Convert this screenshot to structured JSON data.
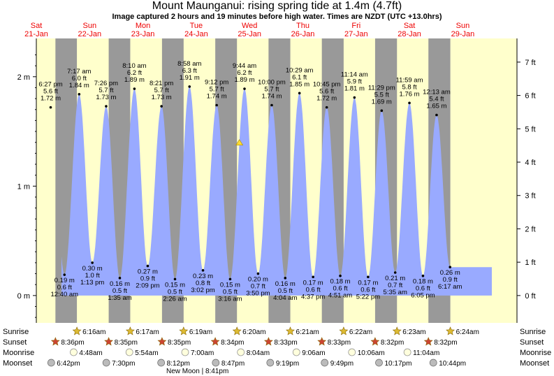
{
  "title": "Mount Maunganui: rising  spring tide at 1.4m (4.7ft)",
  "subtitle": "Image captured 2 hours and 19 minutes before high water. Times are NZDT (UTC +13.0hrs)",
  "colors": {
    "day": "#ffffcc",
    "night": "#999999",
    "tide": "#99aaff",
    "date": "#ee0000",
    "sun_star": "#ddbb33",
    "sunset_star": "#cc4433",
    "moonrise": "#ffffdd",
    "moonset": "#bbbbbb",
    "marker": "#ffdd33"
  },
  "chart_data": {
    "type": "area",
    "ylim_m": [
      -0.25,
      2.35
    ],
    "yticks_m": [
      "0 m",
      "1 m",
      "2 m"
    ],
    "yticks_ft": [
      "0 ft",
      "1 ft",
      "2 ft",
      "3 ft",
      "4 ft",
      "5 ft",
      "6 ft",
      "7 ft"
    ],
    "days": [
      {
        "name": "Sat",
        "date": "21-Jan"
      },
      {
        "name": "Sun",
        "date": "22-Jan"
      },
      {
        "name": "Mon",
        "date": "23-Jan"
      },
      {
        "name": "Tue",
        "date": "24-Jan"
      },
      {
        "name": "Wed",
        "date": "25-Jan"
      },
      {
        "name": "Thu",
        "date": "26-Jan"
      },
      {
        "name": "Fri",
        "date": "27-Jan"
      },
      {
        "name": "Sat",
        "date": "28-Jan"
      },
      {
        "name": "Sun",
        "date": "29-Jan"
      }
    ],
    "tides": [
      {
        "kind": "high",
        "time": "6:27 pm",
        "ft": "5.6 ft",
        "m": 1.72
      },
      {
        "kind": "low",
        "time": "12:40 am",
        "ft": "0.6 ft",
        "m": 0.19
      },
      {
        "kind": "high",
        "time": "7:17 am",
        "ft": "6.0 ft",
        "m": 1.84
      },
      {
        "kind": "low",
        "time": "1:13 pm",
        "ft": "1.0 ft",
        "m": 0.3
      },
      {
        "kind": "high",
        "time": "7:26 pm",
        "ft": "5.7 ft",
        "m": 1.73
      },
      {
        "kind": "low",
        "time": "1:35 am",
        "ft": "0.5 ft",
        "m": 0.16
      },
      {
        "kind": "high",
        "time": "8:10 am",
        "ft": "6.2 ft",
        "m": 1.89
      },
      {
        "kind": "low",
        "time": "2:09 pm",
        "ft": "0.9 ft",
        "m": 0.27
      },
      {
        "kind": "high",
        "time": "8:21 pm",
        "ft": "5.7 ft",
        "m": 1.73
      },
      {
        "kind": "low",
        "time": "2:26 am",
        "ft": "0.5 ft",
        "m": 0.15
      },
      {
        "kind": "high",
        "time": "8:58 am",
        "ft": "6.3 ft",
        "m": 1.91
      },
      {
        "kind": "low",
        "time": "3:02 pm",
        "ft": "0.8 ft",
        "m": 0.23
      },
      {
        "kind": "high",
        "time": "9:12 pm",
        "ft": "5.7 ft",
        "m": 1.74
      },
      {
        "kind": "low",
        "time": "3:16 am",
        "ft": "0.5 ft",
        "m": 0.15
      },
      {
        "kind": "high",
        "time": "9:44 am",
        "ft": "6.2 ft",
        "m": 1.89
      },
      {
        "kind": "low",
        "time": "3:50 pm",
        "ft": "0.7 ft",
        "m": 0.2
      },
      {
        "kind": "high",
        "time": "10:00 pm",
        "ft": "5.7 ft",
        "m": 1.74
      },
      {
        "kind": "low",
        "time": "4:04 am",
        "ft": "0.5 ft",
        "m": 0.16
      },
      {
        "kind": "high",
        "time": "10:29 am",
        "ft": "6.1 ft",
        "m": 1.85
      },
      {
        "kind": "low",
        "time": "4:37 pm",
        "ft": "0.6 ft",
        "m": 0.17
      },
      {
        "kind": "high",
        "time": "10:45 pm",
        "ft": "5.6 ft",
        "m": 1.72
      },
      {
        "kind": "low",
        "time": "4:51 am",
        "ft": "0.6 ft",
        "m": 0.18
      },
      {
        "kind": "high",
        "time": "11:14 am",
        "ft": "5.9 ft",
        "m": 1.81
      },
      {
        "kind": "low",
        "time": "5:22 pm",
        "ft": "0.6 ft",
        "m": 0.17
      },
      {
        "kind": "high",
        "time": "11:29 pm",
        "ft": "5.5 ft",
        "m": 1.69
      },
      {
        "kind": "low",
        "time": "5:35 am",
        "ft": "0.7 ft",
        "m": 0.21
      },
      {
        "kind": "high",
        "time": "11:59 am",
        "ft": "5.8 ft",
        "m": 1.76
      },
      {
        "kind": "low",
        "time": "6:05 pm",
        "ft": "0.6 ft",
        "m": 0.18
      },
      {
        "kind": "high",
        "time": "12:13 am",
        "ft": "5.4 ft",
        "m": 1.65
      },
      {
        "kind": "low",
        "time": "6:17 am",
        "ft": "0.9 ft",
        "m": 0.26
      }
    ],
    "current_tide_m": 1.4
  },
  "rows": {
    "sunrise_label": "Sunrise",
    "sunset_label": "Sunset",
    "moonrise_label": "Moonrise",
    "moonset_label": "Moonset",
    "sunrise": [
      "6:16am",
      "6:17am",
      "6:19am",
      "6:20am",
      "6:21am",
      "6:22am",
      "6:23am",
      "6:24am"
    ],
    "sunset": [
      "8:36pm",
      "8:35pm",
      "8:35pm",
      "8:34pm",
      "8:33pm",
      "8:33pm",
      "8:32pm",
      "8:32pm"
    ],
    "moonrise": [
      "4:48am",
      "5:54am",
      "7:00am",
      "8:04am",
      "9:06am",
      "10:06am",
      "11:04am"
    ],
    "moonset": [
      "6:42pm",
      "7:30pm",
      "8:12pm",
      "8:47pm",
      "9:19pm",
      "9:49pm",
      "10:17pm",
      "10:44pm"
    ],
    "new_moon": "New Moon | 8:41pm"
  }
}
